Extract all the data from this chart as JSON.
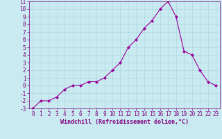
{
  "x_values": [
    0,
    1,
    2,
    3,
    4,
    5,
    6,
    7,
    8,
    9,
    10,
    11,
    12,
    13,
    14,
    15,
    16,
    17,
    18,
    19,
    20,
    21,
    22,
    23
  ],
  "y_values": [
    -3,
    -2,
    -2,
    -1.5,
    -0.5,
    0,
    0,
    0.5,
    0.5,
    1,
    2,
    3,
    5,
    6,
    7.5,
    8.5,
    10,
    11,
    9,
    4.5,
    4,
    2,
    0.5,
    0
  ],
  "line_color": "#990099",
  "marker": "D",
  "marker_size": 2,
  "bg_color": "#c8eaf0",
  "grid_color": "#b0d8e0",
  "xlabel": "Windchill (Refroidissement éolien,°C)",
  "xlim": [
    -0.5,
    23.5
  ],
  "ylim": [
    -3,
    11
  ],
  "yticks": [
    -3,
    -2,
    -1,
    0,
    1,
    2,
    3,
    4,
    5,
    6,
    7,
    8,
    9,
    10,
    11
  ],
  "xticks": [
    0,
    1,
    2,
    3,
    4,
    5,
    6,
    7,
    8,
    9,
    10,
    11,
    12,
    13,
    14,
    15,
    16,
    17,
    18,
    19,
    20,
    21,
    22,
    23
  ],
  "label_color": "#800080",
  "font_size": 5.5,
  "xlabel_fontsize": 6.0
}
